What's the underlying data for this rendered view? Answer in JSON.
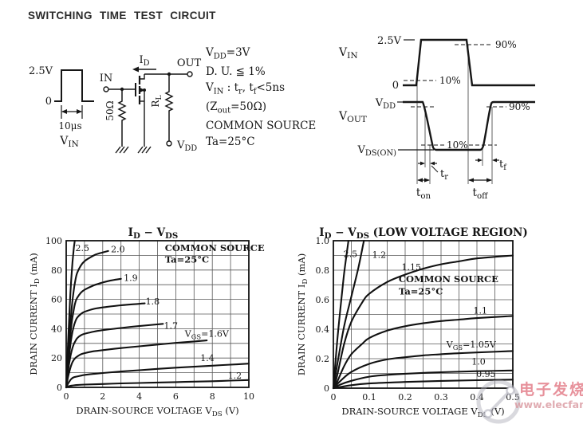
{
  "page": {
    "title": "SWITCHING TIME TEST CIRCUIT"
  },
  "test_circuit": {
    "pulse": {
      "high": "2.5V",
      "zero": "0",
      "width": "10μs",
      "signal": "V_{IN}"
    },
    "schematic": {
      "input": "IN",
      "output": "OUT",
      "current": "I_{D}",
      "series_resistor": "50Ω",
      "load_resistor": "R_{L}",
      "supply": "V_{DD}"
    },
    "conditions": [
      "V_{DD}=3V",
      "D. U. ≦ 1%",
      "V_{IN} : t_{r}, t_{f}<5ns",
      "(Z_{out}=50Ω)",
      "COMMON SOURCE",
      "Ta=25°C"
    ]
  },
  "timing_diagram": {
    "vin_label": "V_{IN}",
    "vin_high": "2.5V",
    "vin_low": "0",
    "pct10_in": "10%",
    "pct90_in": "90%",
    "vout_label": "V_{OUT}",
    "vout_high": "V_{DD}",
    "vout_low": "V_{DS(ON)}",
    "pct90_out": "90%",
    "pct10_out": "10%",
    "tr": "t_{r}",
    "tf": "t_{f}",
    "ton": "t_{on}",
    "toff": "t_{off}"
  },
  "chart_data": [
    {
      "type": "line",
      "title": "I_{D} − V_{DS}",
      "xlabel": "DRAIN-SOURCE VOLTAGE  V_{DS}  (V)",
      "ylabel": "DRAIN CURRENT  I_{D}  (mA)",
      "xlim": [
        0,
        10
      ],
      "ylim": [
        0,
        100
      ],
      "x_minor_step": 1,
      "y_minor_step": 10,
      "xtick_vals": [
        0,
        2,
        4,
        6,
        8,
        10
      ],
      "xtick_labels": [
        "0",
        "2",
        "4",
        "6",
        "8",
        "10"
      ],
      "ytick_vals": [
        0,
        20,
        40,
        60,
        80,
        100
      ],
      "ytick_labels": [
        "0",
        "20",
        "40",
        "60",
        "80",
        "100"
      ],
      "grid": true,
      "legend": "labels-on-curves",
      "annotations": [
        {
          "text": "COMMON SOURCE",
          "x": 5.4,
          "y": 93
        },
        {
          "text": "Ta=25°C",
          "x": 5.4,
          "y": 85
        }
      ],
      "series": [
        {
          "name": "2.5",
          "label": "2.5",
          "label_x": 0.5,
          "label_y": 93,
          "points": [
            [
              0,
              0
            ],
            [
              0.1,
              30
            ],
            [
              0.2,
              57
            ],
            [
              0.3,
              78
            ],
            [
              0.4,
              93
            ],
            [
              0.47,
              100
            ]
          ]
        },
        {
          "name": "2.0",
          "label": "2.0",
          "label_x": 2.45,
          "label_y": 92,
          "points": [
            [
              0,
              0
            ],
            [
              0.1,
              20
            ],
            [
              0.2,
              39
            ],
            [
              0.3,
              54
            ],
            [
              0.4,
              65
            ],
            [
              0.5,
              73
            ],
            [
              0.6,
              78
            ],
            [
              0.8,
              83
            ],
            [
              1.0,
              86
            ],
            [
              1.3,
              88.5
            ],
            [
              1.6,
              90.5
            ],
            [
              2.0,
              92
            ],
            [
              2.3,
              93
            ]
          ]
        },
        {
          "name": "1.9",
          "label": "1.9",
          "label_x": 3.15,
          "label_y": 72.5,
          "points": [
            [
              0,
              0
            ],
            [
              0.1,
              17
            ],
            [
              0.2,
              32
            ],
            [
              0.3,
              44
            ],
            [
              0.4,
              52
            ],
            [
              0.5,
              58
            ],
            [
              0.6,
              61
            ],
            [
              0.8,
              64.5
            ],
            [
              1.0,
              66.5
            ],
            [
              1.5,
              69.5
            ],
            [
              2.0,
              71.5
            ],
            [
              2.5,
              73
            ],
            [
              3.0,
              74
            ]
          ]
        },
        {
          "name": "1.8",
          "label": "1.8",
          "label_x": 4.35,
          "label_y": 56.5,
          "points": [
            [
              0,
              0
            ],
            [
              0.1,
              14
            ],
            [
              0.2,
              26
            ],
            [
              0.3,
              35
            ],
            [
              0.4,
              41
            ],
            [
              0.5,
              45
            ],
            [
              0.6,
              47.5
            ],
            [
              0.8,
              50
            ],
            [
              1.0,
              51.5
            ],
            [
              1.5,
              53.5
            ],
            [
              2.0,
              54.5
            ],
            [
              3.0,
              56
            ],
            [
              4.3,
              57.3
            ]
          ]
        },
        {
          "name": "1.7",
          "label": "1.7",
          "label_x": 5.35,
          "label_y": 40,
          "points": [
            [
              0,
              0
            ],
            [
              0.1,
              11
            ],
            [
              0.2,
              19
            ],
            [
              0.3,
              25
            ],
            [
              0.4,
              29
            ],
            [
              0.5,
              31.5
            ],
            [
              0.6,
              33.5
            ],
            [
              0.8,
              35.5
            ],
            [
              1.0,
              36.5
            ],
            [
              1.5,
              38
            ],
            [
              2.0,
              39
            ],
            [
              3.0,
              40.5
            ],
            [
              4.0,
              41.8
            ],
            [
              5.3,
              43.3
            ]
          ]
        },
        {
          "name": "1.6",
          "label": "V_{GS}=1.6V",
          "label_x": 6.5,
          "label_y": 34.5,
          "points": [
            [
              0,
              0
            ],
            [
              0.1,
              7
            ],
            [
              0.2,
              12
            ],
            [
              0.3,
              16
            ],
            [
              0.4,
              18.5
            ],
            [
              0.5,
              20
            ],
            [
              0.6,
              21
            ],
            [
              0.8,
              22.5
            ],
            [
              1.0,
              23.3
            ],
            [
              1.5,
              24.6
            ],
            [
              2.0,
              25.4
            ],
            [
              3.0,
              26.8
            ],
            [
              4.0,
              28
            ],
            [
              5.0,
              29.2
            ],
            [
              6.0,
              30.3
            ],
            [
              7.0,
              31.3
            ],
            [
              7.7,
              32
            ]
          ]
        },
        {
          "name": "1.4",
          "label": "1.4",
          "label_x": 7.35,
          "label_y": 17.8,
          "points": [
            [
              0,
              0
            ],
            [
              0.1,
              2.5
            ],
            [
              0.2,
              4.5
            ],
            [
              0.3,
              6
            ],
            [
              0.4,
              6.8
            ],
            [
              0.5,
              7.2
            ],
            [
              0.8,
              8
            ],
            [
              1.0,
              8.5
            ],
            [
              1.5,
              9.2
            ],
            [
              2.0,
              9.8
            ],
            [
              3.0,
              10.8
            ],
            [
              4.0,
              11.7
            ],
            [
              5.0,
              12.6
            ],
            [
              6.0,
              13.4
            ],
            [
              7.0,
              14.1
            ],
            [
              8.0,
              14.8
            ],
            [
              9.0,
              15.5
            ],
            [
              10,
              16.2
            ]
          ]
        },
        {
          "name": "1.2",
          "label": "1.2",
          "label_x": 8.85,
          "label_y": 6,
          "points": [
            [
              0,
              0
            ],
            [
              0.1,
              0.6
            ],
            [
              0.3,
              1.2
            ],
            [
              0.5,
              1.5
            ],
            [
              1.0,
              1.9
            ],
            [
              2.0,
              2.3
            ],
            [
              3.0,
              2.7
            ],
            [
              4.0,
              3.0
            ],
            [
              5.0,
              3.3
            ],
            [
              6.0,
              3.6
            ],
            [
              7.0,
              3.9
            ],
            [
              8.0,
              4.2
            ],
            [
              9.0,
              4.6
            ],
            [
              10,
              5.0
            ]
          ]
        }
      ]
    },
    {
      "type": "line",
      "title": "I_{D} − V_{DS}   (LOW VOLTAGE REGION)",
      "xlabel": "DRAIN-SOURCE VOLTAGE  V_{DS}  (V)",
      "ylabel": "DRAIN CURRENT  I_{D}  (mA)",
      "xlim": [
        0,
        0.5
      ],
      "ylim": [
        0,
        1.0
      ],
      "x_minor_step": 0.05,
      "y_minor_step": 0.1,
      "xtick_vals": [
        0,
        0.1,
        0.2,
        0.3,
        0.4,
        0.5
      ],
      "xtick_labels": [
        "0",
        "0.1",
        "0.2",
        "0.3",
        "0.4",
        "0.5"
      ],
      "ytick_vals": [
        0,
        0.2,
        0.4,
        0.6,
        0.8,
        1.0
      ],
      "ytick_labels": [
        "0",
        "0.2",
        "0.4",
        "0.6",
        "0.8",
        "1.0"
      ],
      "grid": true,
      "legend": "labels-on-curves",
      "annotations": [
        {
          "text": "COMMON SOURCE",
          "x": 0.182,
          "y": 0.72
        },
        {
          "text": "Ta=25°C",
          "x": 0.182,
          "y": 0.635
        }
      ],
      "series": [
        {
          "name": "2.5",
          "label": "2.5",
          "label_x": 0.028,
          "label_y": 0.89,
          "points": [
            [
              0,
              0
            ],
            [
              0.01,
              0.3
            ],
            [
              0.02,
              0.55
            ],
            [
              0.03,
              0.78
            ],
            [
              0.042,
              1.0
            ]
          ]
        },
        {
          "name": "1.2",
          "label": "1.2",
          "label_x": 0.108,
          "label_y": 0.885,
          "points": [
            [
              0,
              0
            ],
            [
              0.01,
              0.15
            ],
            [
              0.03,
              0.42
            ],
            [
              0.05,
              0.62
            ],
            [
              0.07,
              0.82
            ],
            [
              0.085,
              1.0
            ]
          ]
        },
        {
          "name": "1.15",
          "label": "1.15",
          "label_x": 0.19,
          "label_y": 0.8,
          "points": [
            [
              0,
              0
            ],
            [
              0.01,
              0.08
            ],
            [
              0.03,
              0.3
            ],
            [
              0.05,
              0.45
            ],
            [
              0.08,
              0.58
            ],
            [
              0.1,
              0.64
            ],
            [
              0.15,
              0.72
            ],
            [
              0.2,
              0.77
            ],
            [
              0.25,
              0.81
            ],
            [
              0.3,
              0.84
            ],
            [
              0.35,
              0.86
            ],
            [
              0.4,
              0.88
            ],
            [
              0.5,
              0.9
            ]
          ]
        },
        {
          "name": "1.1",
          "label": "1.1",
          "label_x": 0.39,
          "label_y": 0.505,
          "points": [
            [
              0,
              0
            ],
            [
              0.01,
              0.04
            ],
            [
              0.03,
              0.15
            ],
            [
              0.05,
              0.23
            ],
            [
              0.08,
              0.3
            ],
            [
              0.1,
              0.34
            ],
            [
              0.15,
              0.39
            ],
            [
              0.2,
              0.42
            ],
            [
              0.25,
              0.44
            ],
            [
              0.3,
              0.455
            ],
            [
              0.35,
              0.465
            ],
            [
              0.4,
              0.475
            ],
            [
              0.5,
              0.49
            ]
          ]
        },
        {
          "name": "1.05",
          "label": "V_{GS}=1.05V",
          "label_x": 0.315,
          "label_y": 0.275,
          "points": [
            [
              0,
              0
            ],
            [
              0.02,
              0.05
            ],
            [
              0.05,
              0.11
            ],
            [
              0.1,
              0.165
            ],
            [
              0.15,
              0.195
            ],
            [
              0.2,
              0.21
            ],
            [
              0.25,
              0.222
            ],
            [
              0.3,
              0.23
            ],
            [
              0.35,
              0.237
            ],
            [
              0.4,
              0.242
            ],
            [
              0.5,
              0.252
            ]
          ]
        },
        {
          "name": "1.0",
          "label": "1.0",
          "label_x": 0.385,
          "label_y": 0.16,
          "points": [
            [
              0,
              0
            ],
            [
              0.02,
              0.025
            ],
            [
              0.05,
              0.05
            ],
            [
              0.1,
              0.078
            ],
            [
              0.15,
              0.09
            ],
            [
              0.2,
              0.098
            ],
            [
              0.3,
              0.108
            ],
            [
              0.4,
              0.115
            ],
            [
              0.5,
              0.12
            ]
          ]
        },
        {
          "name": "0.95",
          "label": "0.95",
          "label_x": 0.398,
          "label_y": 0.075,
          "points": [
            [
              0,
              0
            ],
            [
              0.05,
              0.02
            ],
            [
              0.1,
              0.032
            ],
            [
              0.2,
              0.042
            ],
            [
              0.3,
              0.049
            ],
            [
              0.4,
              0.054
            ],
            [
              0.5,
              0.058
            ]
          ]
        }
      ]
    }
  ],
  "watermark": {
    "brand": "电子发烧友",
    "url": "www.elecfans.com"
  }
}
